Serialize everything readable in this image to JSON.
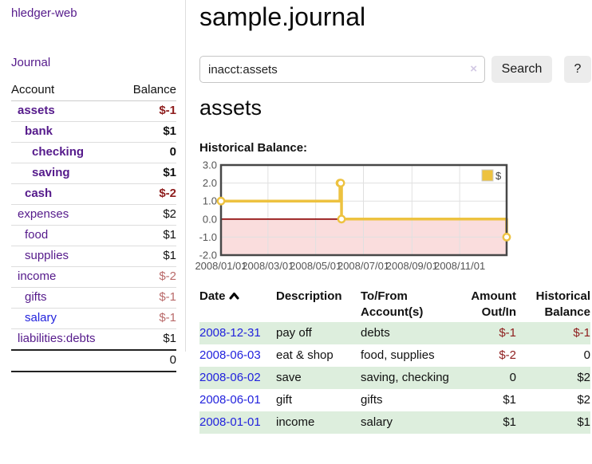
{
  "app": {
    "brand": "hledger-web",
    "nav_journal": "Journal"
  },
  "sidebar": {
    "header": {
      "account": "Account",
      "balance": "Balance"
    },
    "accounts": [
      {
        "name": "assets",
        "indent": 1,
        "bold": true,
        "balance": "$-1",
        "neg": "strong",
        "link": "purple"
      },
      {
        "name": "bank",
        "indent": 2,
        "bold": true,
        "balance": "$1",
        "neg": "none",
        "link": "purple"
      },
      {
        "name": "checking",
        "indent": 3,
        "bold": true,
        "balance": "0",
        "neg": "none",
        "link": "purple"
      },
      {
        "name": "saving",
        "indent": 3,
        "bold": true,
        "balance": "$1",
        "neg": "none",
        "link": "purple"
      },
      {
        "name": "cash",
        "indent": 2,
        "bold": true,
        "balance": "$-2",
        "neg": "strong",
        "link": "purple"
      },
      {
        "name": "expenses",
        "indent": 1,
        "bold": false,
        "balance": "$2",
        "neg": "none",
        "link": "purple"
      },
      {
        "name": "food",
        "indent": 2,
        "bold": false,
        "balance": "$1",
        "neg": "none",
        "link": "purple"
      },
      {
        "name": "supplies",
        "indent": 2,
        "bold": false,
        "balance": "$1",
        "neg": "none",
        "link": "purple"
      },
      {
        "name": "income",
        "indent": 1,
        "bold": false,
        "balance": "$-2",
        "neg": "soft",
        "link": "purple"
      },
      {
        "name": "gifts",
        "indent": 2,
        "bold": false,
        "balance": "$-1",
        "neg": "soft",
        "link": "purple"
      },
      {
        "name": "salary",
        "indent": 2,
        "bold": false,
        "balance": "$-1",
        "neg": "soft",
        "link": "blue"
      },
      {
        "name": "liabilities:debts",
        "indent": 1,
        "bold": false,
        "balance": "$1",
        "neg": "none",
        "link": "purple"
      }
    ],
    "total": "0"
  },
  "header": {
    "title": "sample.journal"
  },
  "search": {
    "value": "inacct:assets",
    "clear_icon": "×",
    "button": "Search",
    "help": "?"
  },
  "account_page": {
    "heading": "assets",
    "chart_label": "Historical Balance:"
  },
  "chart_data": {
    "type": "line",
    "step": true,
    "series": [
      {
        "name": "$",
        "color": "#edc240",
        "points": [
          {
            "date": "2008/01/01",
            "value": 1
          },
          {
            "date": "2008/06/01",
            "value": 2
          },
          {
            "date": "2008/06/02",
            "value": 2
          },
          {
            "date": "2008/06/03",
            "value": 0
          },
          {
            "date": "2008/12/31",
            "value": -1
          }
        ]
      }
    ],
    "x_range": [
      "2008/01/01",
      "2008/12/31"
    ],
    "x_ticks": [
      "2008/01/01",
      "2008/03/01",
      "2008/05/01",
      "2008/07/01",
      "2008/09/01",
      "2008/11/01"
    ],
    "y_ticks": [
      3.0,
      2.0,
      1.0,
      0.0,
      -1.0,
      -2.0
    ],
    "ylim": [
      -2,
      3
    ],
    "grid": true,
    "negative_fill": "#fadddd",
    "zero_line_color": "#8b0000",
    "border_color": "#474747",
    "axis_label_color": "#545454",
    "legend": {
      "label": "$",
      "position": "top-right"
    }
  },
  "register": {
    "columns": {
      "date": "Date",
      "description": "Description",
      "accounts": "To/From Account(s)",
      "amount": "Amount Out/In",
      "balance": "Historical Balance"
    },
    "sort": {
      "column": "date",
      "direction": "asc"
    },
    "rows": [
      {
        "date": "2008-12-31",
        "description": "pay off",
        "accounts": "debts",
        "amount": "$-1",
        "amount_neg": true,
        "balance": "$-1",
        "balance_neg": true
      },
      {
        "date": "2008-06-03",
        "description": "eat & shop",
        "accounts": "food, supplies",
        "amount": "$-2",
        "amount_neg": true,
        "balance": "0",
        "balance_neg": false
      },
      {
        "date": "2008-06-02",
        "description": "save",
        "accounts": "saving, checking",
        "amount": "0",
        "amount_neg": false,
        "balance": "$2",
        "balance_neg": false
      },
      {
        "date": "2008-06-01",
        "description": "gift",
        "accounts": "gifts",
        "amount": "$1",
        "amount_neg": false,
        "balance": "$2",
        "balance_neg": false
      },
      {
        "date": "2008-01-01",
        "description": "income",
        "accounts": "salary",
        "amount": "$1",
        "amount_neg": false,
        "balance": "$1",
        "balance_neg": false
      }
    ]
  }
}
